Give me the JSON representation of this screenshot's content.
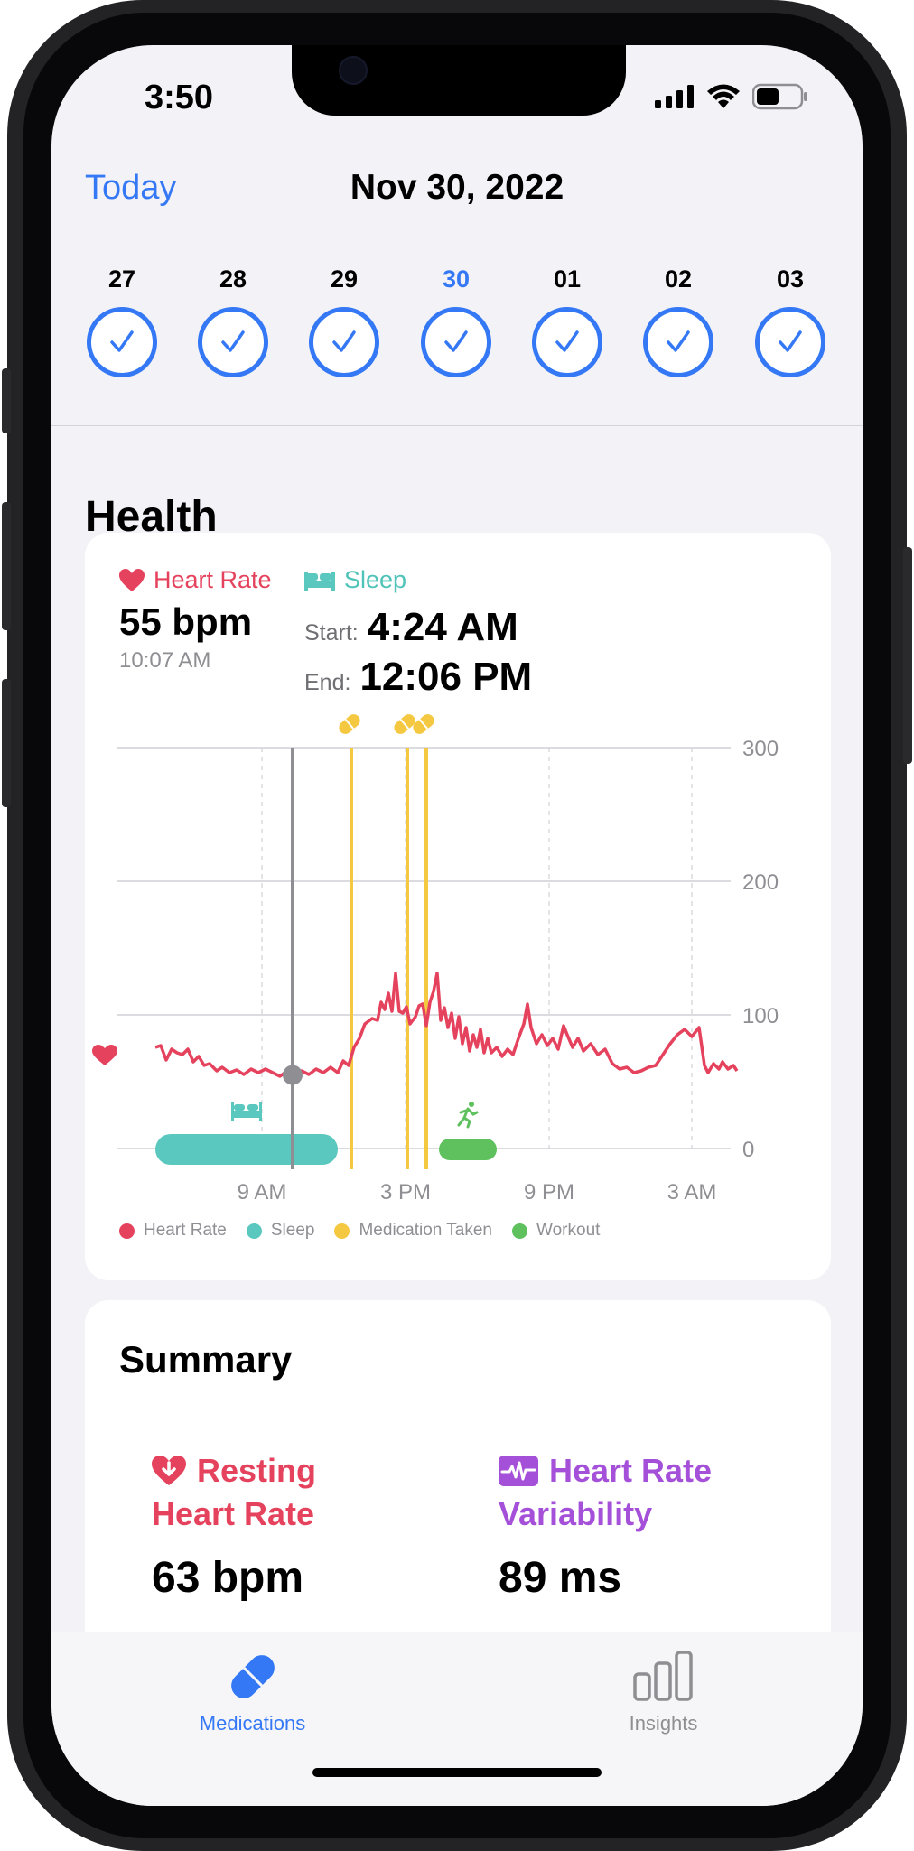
{
  "status_bar": {
    "time": "3:50"
  },
  "header": {
    "today_label": "Today",
    "date_title": "Nov 30, 2022"
  },
  "week": {
    "days": [
      "27",
      "28",
      "29",
      "30",
      "01",
      "02",
      "03"
    ],
    "selected_index": 3
  },
  "health": {
    "section_title": "Health",
    "heart_rate": {
      "label": "Heart Rate",
      "value": "55 bpm",
      "time": "10:07 AM"
    },
    "sleep": {
      "label": "Sleep",
      "start_label": "Start:",
      "start_value": "4:24 AM",
      "end_label": "End:",
      "end_value": "12:06 PM"
    }
  },
  "chart_data": {
    "type": "line",
    "series": [
      {
        "name": "Heart Rate",
        "color": "#e5425d"
      }
    ],
    "y_ticks": [
      "300",
      "200",
      "100",
      "0"
    ],
    "ylim": [
      0,
      300
    ],
    "x_ticks": [
      "9 AM",
      "3 PM",
      "9 PM",
      "3 AM"
    ],
    "legend": [
      {
        "label": "Heart Rate",
        "color": "#e5425d"
      },
      {
        "label": "Sleep",
        "color": "#5ac8be"
      },
      {
        "label": "Medication Taken",
        "color": "#f5c842"
      },
      {
        "label": "Workout",
        "color": "#5ec15e"
      }
    ],
    "legend_position": "bottom",
    "grid": true,
    "events": {
      "sleep": {
        "start": "4:24 AM",
        "end": "12:06 PM"
      },
      "medication_doses": 3,
      "workout": 1
    },
    "selected_value": {
      "time": "10:07 AM",
      "value": 55
    }
  },
  "summary": {
    "title": "Summary",
    "resting_hr": {
      "label_line1": "Resting",
      "label_line2": "Heart Rate",
      "value": "63 bpm"
    },
    "hrv": {
      "label_line1": "Heart Rate",
      "label_line2": "Variability",
      "value": "89 ms"
    }
  },
  "tabbar": {
    "medications_label": "Medications",
    "insights_label": "Insights"
  },
  "colors": {
    "accent": "#3478f6",
    "heart": "#e5425d",
    "sleep": "#5ac8be",
    "medication": "#f5c842",
    "workout": "#5ec15e",
    "hrv": "#a550d8"
  }
}
